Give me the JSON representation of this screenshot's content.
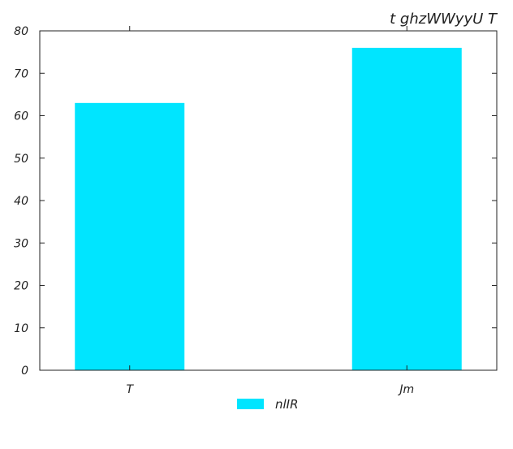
{
  "chart_data": {
    "type": "bar",
    "title": "t ghzWWyyU T",
    "xlabel": "",
    "ylabel": "",
    "categories": [
      "T",
      "Jm"
    ],
    "series": [
      {
        "name": "nlIR",
        "values": [
          63,
          76
        ],
        "color": "#00e5ff"
      }
    ],
    "ylim": [
      0,
      80
    ],
    "yticks": [
      0,
      10,
      20,
      30,
      40,
      50,
      60,
      70,
      80
    ],
    "grid": false,
    "legend": "bottom-center"
  }
}
